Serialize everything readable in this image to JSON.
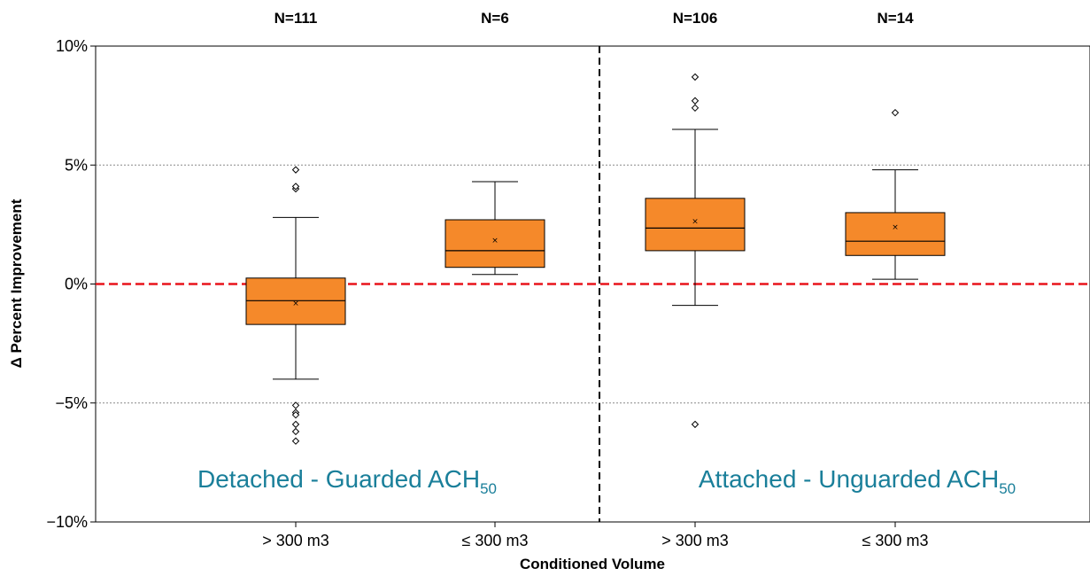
{
  "chart_data": {
    "type": "box",
    "xlabel": "Conditioned Volume",
    "ylabel": "Δ Percent Improvement",
    "ylim": [
      -10,
      10
    ],
    "yticks": [
      {
        "value": 10,
        "label": "10%"
      },
      {
        "value": 5,
        "label": "5%"
      },
      {
        "value": 0,
        "label": "0%"
      },
      {
        "value": -5,
        "label": "−5%"
      },
      {
        "value": -10,
        "label": "−10%"
      }
    ],
    "grid": {
      "y_dotted": [
        5,
        -5
      ]
    },
    "reference_line": {
      "y": 0,
      "color": "#e8141b",
      "style": "dashed"
    },
    "box_color": "#f5892a",
    "groups": [
      {
        "label_main": "Detached - Guarded ACH",
        "label_sub": "50",
        "color": "#1a7f9a",
        "boxes": [
          {
            "category": "> 300 m3",
            "n_label": "N=111",
            "whisker_low": -4.0,
            "q1": -1.7,
            "median": -0.7,
            "q3": 0.25,
            "whisker_high": 2.8,
            "mean": -0.8,
            "outliers": [
              4.0,
              4.1,
              4.8,
              -5.1,
              -5.4,
              -5.5,
              -5.9,
              -6.2,
              -6.6
            ]
          },
          {
            "category": "≤ 300 m3",
            "n_label": "N=6",
            "whisker_low": 0.4,
            "q1": 0.7,
            "median": 1.4,
            "q3": 2.7,
            "whisker_high": 4.3,
            "mean": 1.85,
            "outliers": []
          }
        ]
      },
      {
        "label_main": "Attached - Unguarded ACH",
        "label_sub": "50",
        "color": "#1a7f9a",
        "boxes": [
          {
            "category": "> 300 m3",
            "n_label": "N=106",
            "whisker_low": -0.9,
            "q1": 1.4,
            "median": 2.35,
            "q3": 3.6,
            "whisker_high": 6.5,
            "mean": 2.65,
            "outliers": [
              7.4,
              7.7,
              8.7,
              -5.9
            ]
          },
          {
            "category": "≤ 300 m3",
            "n_label": "N=14",
            "whisker_low": 0.2,
            "q1": 1.2,
            "median": 1.8,
            "q3": 3.0,
            "whisker_high": 4.8,
            "mean": 2.4,
            "outliers": [
              7.2
            ]
          }
        ]
      }
    ]
  }
}
